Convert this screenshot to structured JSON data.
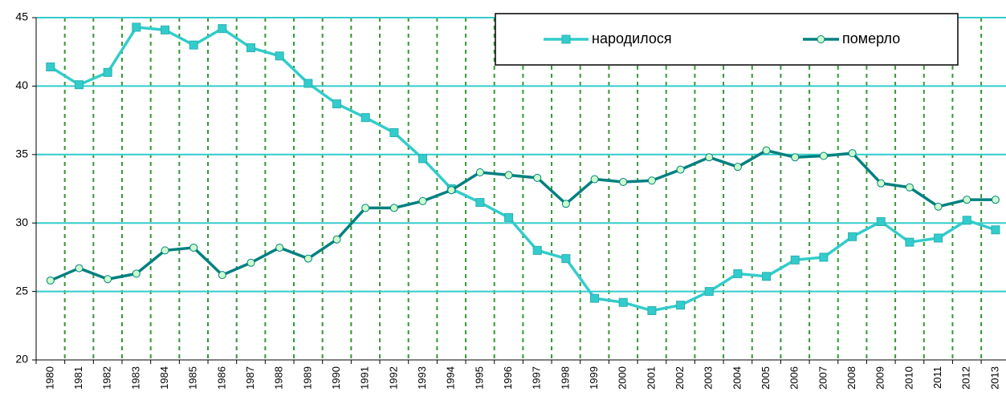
{
  "chart_data": {
    "type": "line",
    "categories": [
      "1980",
      "1981",
      "1982",
      "1983",
      "1984",
      "1985",
      "1986",
      "1987",
      "1988",
      "1989",
      "1990",
      "1991",
      "1992",
      "1993",
      "1994",
      "1995",
      "1996",
      "1997",
      "1998",
      "1999",
      "2000",
      "2001",
      "2002",
      "2003",
      "2004",
      "2005",
      "2006",
      "2007",
      "2008",
      "2009",
      "2010",
      "2011",
      "2012",
      "2013"
    ],
    "series": [
      {
        "name": "народилося",
        "color": "#33cccc",
        "marker": "square",
        "values": [
          41.4,
          40.1,
          41.0,
          44.3,
          44.1,
          43.0,
          44.2,
          42.8,
          42.2,
          40.2,
          38.7,
          37.7,
          36.6,
          34.7,
          32.5,
          31.5,
          30.4,
          28.0,
          27.4,
          24.5,
          24.2,
          23.6,
          24.0,
          25.0,
          26.3,
          26.1,
          27.3,
          27.5,
          29.0,
          30.1,
          28.6,
          28.9,
          30.2,
          29.5
        ]
      },
      {
        "name": "померло",
        "color": "#008080",
        "marker": "circle",
        "values": [
          25.8,
          26.7,
          25.9,
          26.3,
          28.0,
          28.2,
          26.2,
          27.1,
          28.2,
          27.4,
          28.8,
          31.1,
          31.1,
          31.6,
          32.4,
          33.7,
          33.5,
          33.3,
          31.4,
          33.2,
          33.0,
          33.1,
          33.9,
          34.8,
          34.1,
          35.3,
          34.8,
          34.9,
          35.1,
          32.9,
          32.6,
          31.2,
          31.7,
          31.7
        ]
      }
    ],
    "ylim": [
      20,
      45
    ],
    "yticks": [
      20,
      25,
      30,
      35,
      40,
      45
    ],
    "grid": true
  }
}
